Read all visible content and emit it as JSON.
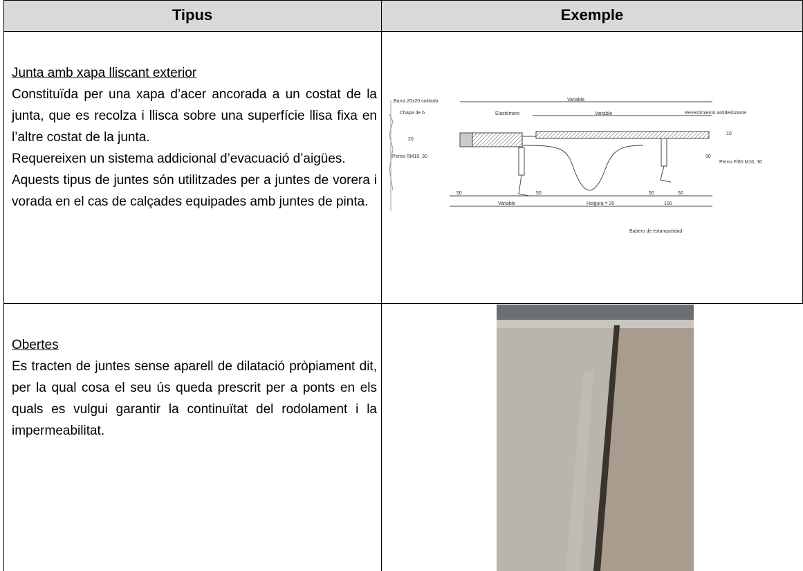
{
  "table": {
    "headers": [
      "Tipus",
      "Exemple"
    ],
    "rows": [
      {
        "title": "Junta amb xapa lliscant exterior",
        "paragraphs": [
          "Constituïda per una xapa d’acer ancorada a un costat de la junta, que es recolza i llisca sobre una superfície llisa fixa en l’altre costat de la junta.",
          "Requereixen un sistema addicional d’evacuació d’aigües.",
          "Aquests tipus de juntes són utilitzades per a juntes de vorera i vorada en el cas de calçades equipades amb juntes de pinta."
        ],
        "drawing_labels": [
          "Barra 20x20 soldada",
          "Chapa de 6",
          "Elastómero",
          "Variable",
          "Variable",
          "Revestimiento antideslizante",
          "10",
          "20",
          "50",
          "Perno RM10, 30",
          "Perno F/80 M10, 30",
          "50",
          "50",
          "50",
          "50",
          "Variable",
          "Holgura = 20",
          "100",
          "Babero de estanqueidad"
        ]
      },
      {
        "title": "Obertes",
        "paragraphs": [
          "Es tracten de juntes sense aparell de dilatació pròpiament dit, per la qual cosa el seu ús queda prescrit per a ponts en els quals es vulgui garantir la continuïtat del rodolament i la impermeabilitat."
        ]
      }
    ]
  }
}
